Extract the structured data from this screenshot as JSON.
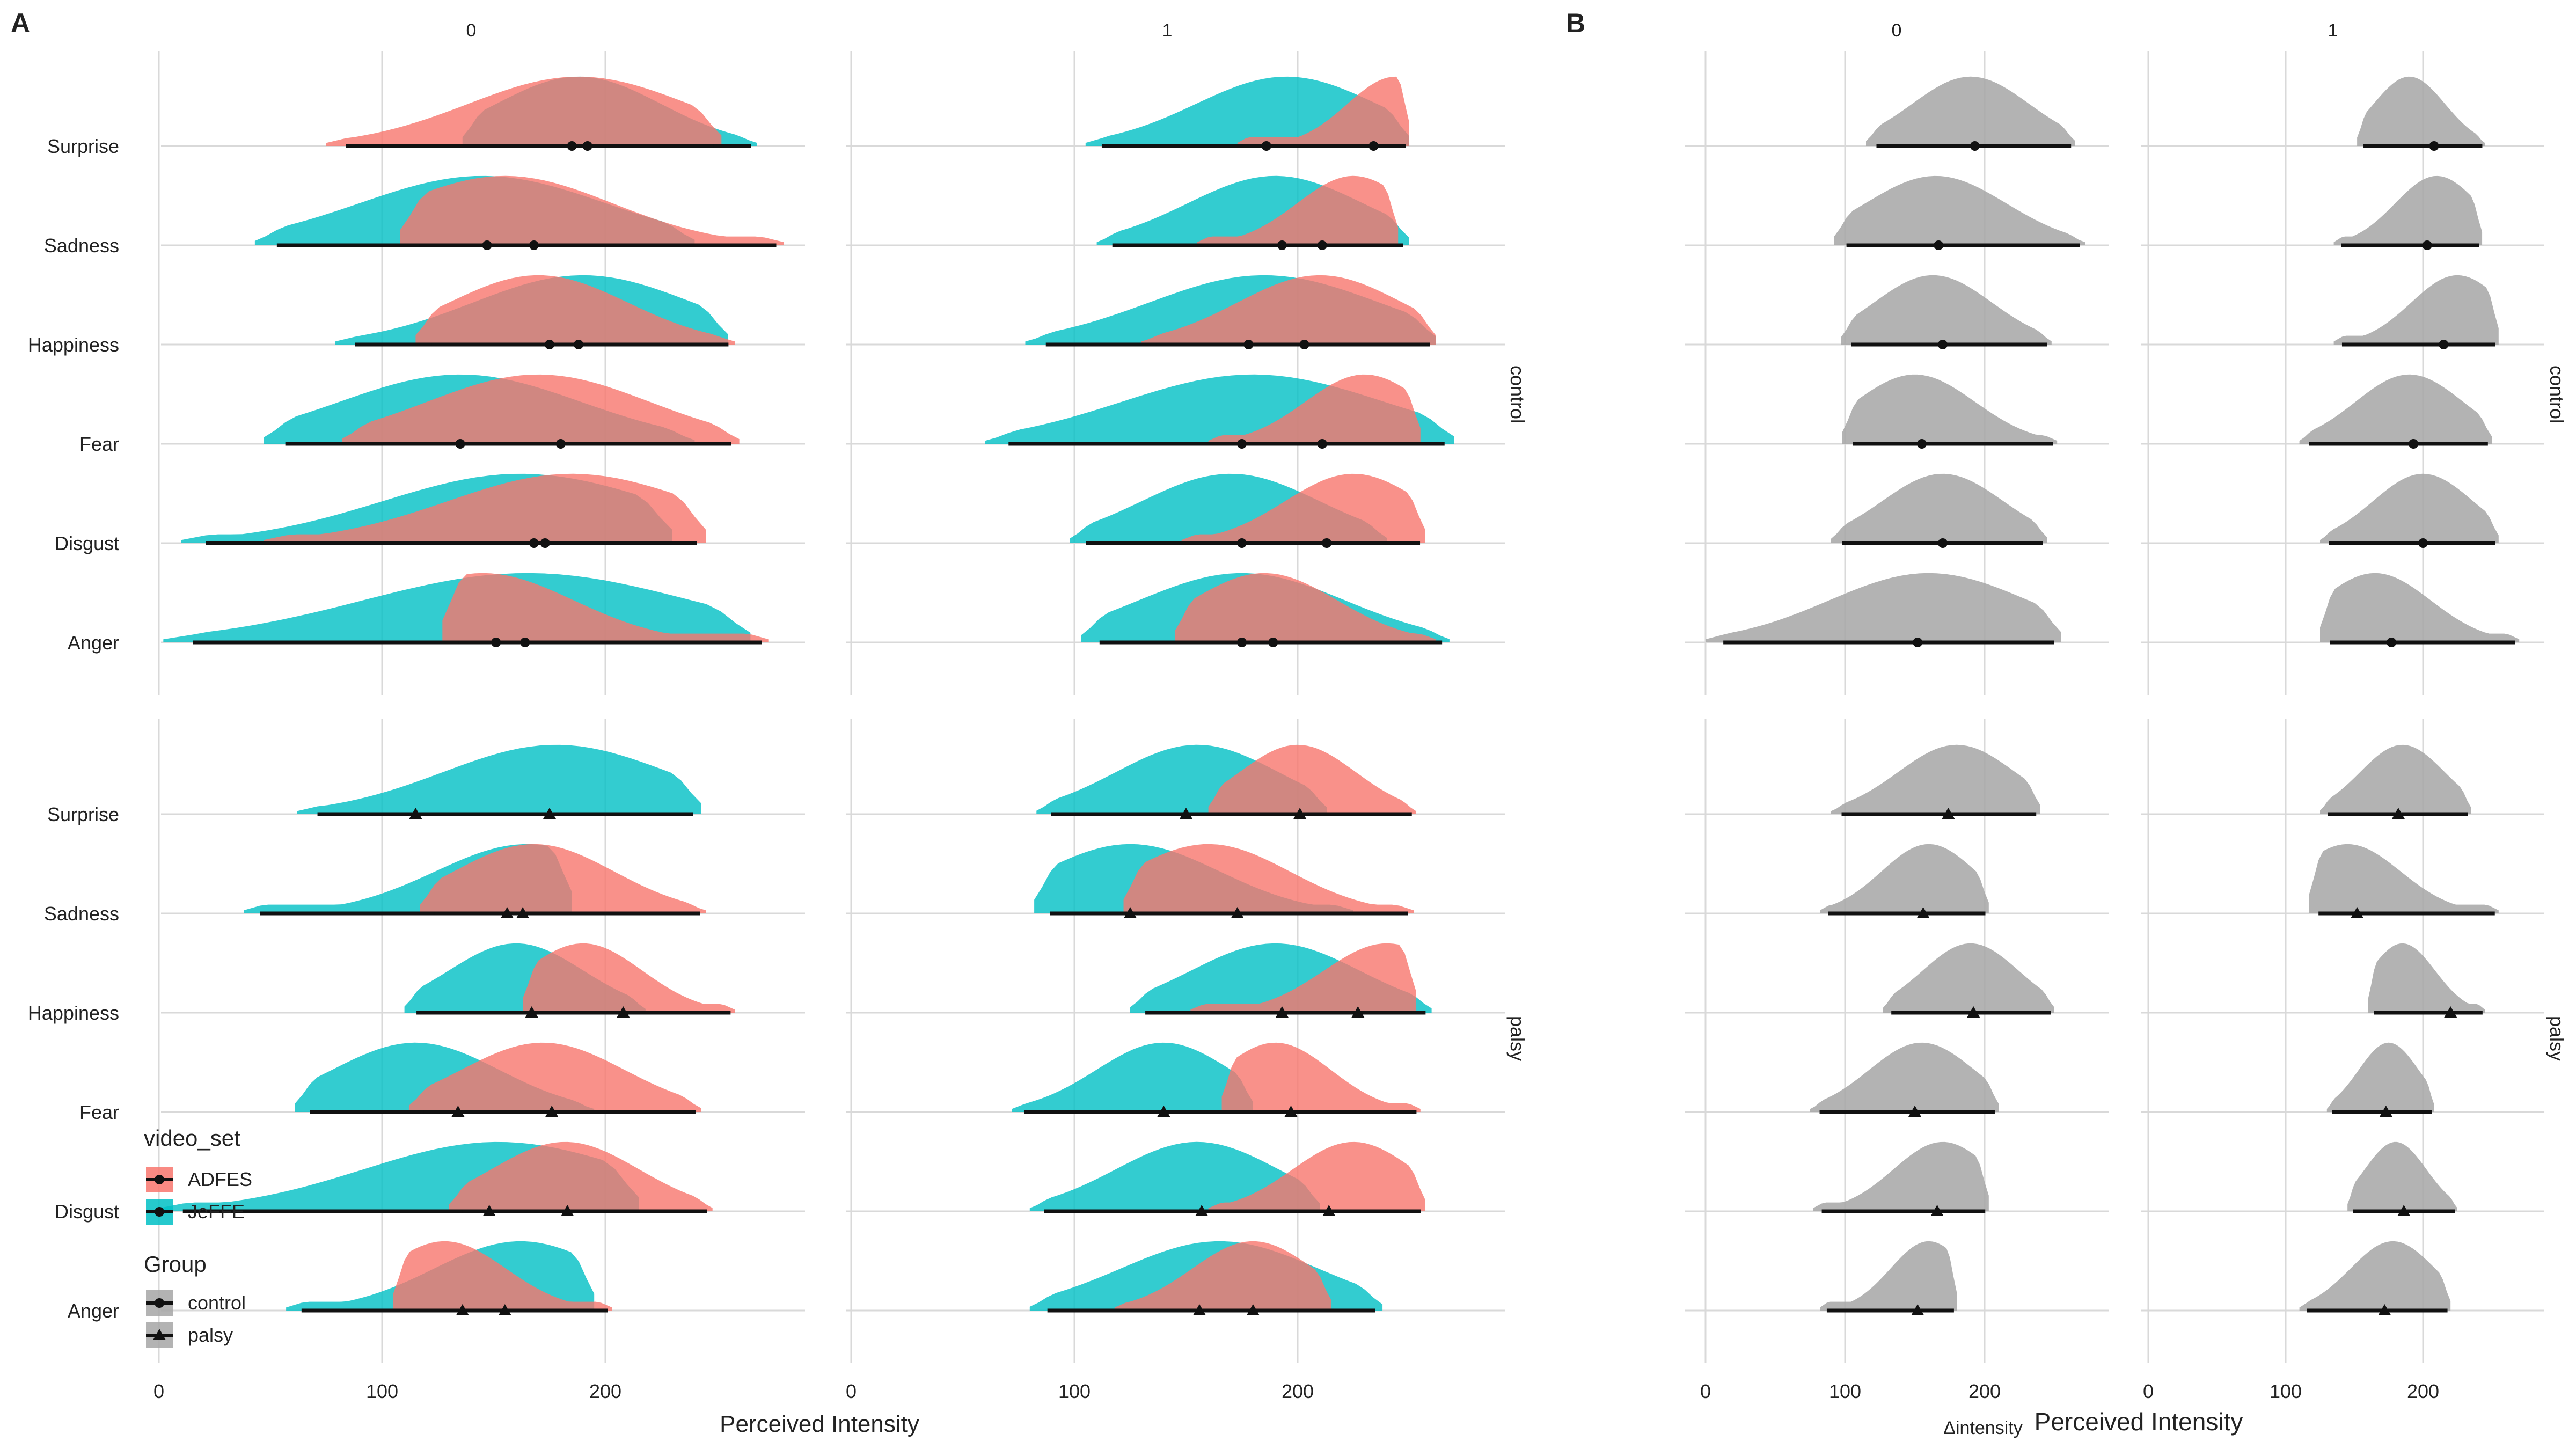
{
  "panel_labels": [
    "A",
    "B"
  ],
  "facet_columns": [
    "0",
    "1"
  ],
  "facet_rows": [
    "control",
    "palsy"
  ],
  "emotions": [
    "Surprise",
    "Sadness",
    "Happiness",
    "Fear",
    "Disgust",
    "Anger"
  ],
  "xlabel_A": "Perceived Intensity",
  "xlabel_B_sub": "Δintensity",
  "xlabel_B": "Perceived  Intensity",
  "legend": {
    "video_title": "video_set",
    "video_items": [
      "ADFES",
      "JeFFE"
    ],
    "group_title": "Group",
    "group_items": [
      "control",
      "palsy"
    ]
  },
  "colors": {
    "ADFES": "#f8766d",
    "JeFFE": "#00bfc4",
    "delta": "#a6a6a6"
  },
  "chart_data": [
    {
      "type": "ridgeline",
      "panel": "A",
      "xlabel": "Perceived Intensity",
      "xticks": [
        0,
        100,
        200
      ],
      "xlim": [
        -10,
        270
      ],
      "series": [
        {
          "row": "control",
          "col": "0",
          "emotion": "Surprise",
          "ADFES": {
            "min": 75,
            "max": 252,
            "mean": 185,
            "median": 188
          },
          "JeFFE": {
            "min": 136,
            "max": 268,
            "mean": 192,
            "median": 188
          }
        },
        {
          "row": "control",
          "col": "0",
          "emotion": "Sadness",
          "ADFES": {
            "min": 108,
            "max": 280,
            "mean": 168,
            "median": 155
          },
          "JeFFE": {
            "min": 43,
            "max": 240,
            "mean": 147,
            "median": 145
          }
        },
        {
          "row": "control",
          "col": "0",
          "emotion": "Happiness",
          "ADFES": {
            "min": 115,
            "max": 258,
            "mean": 175,
            "median": 170
          },
          "JeFFE": {
            "min": 79,
            "max": 255,
            "mean": 188,
            "median": 190
          }
        },
        {
          "row": "control",
          "col": "0",
          "emotion": "Fear",
          "ADFES": {
            "min": 82,
            "max": 260,
            "mean": 180,
            "median": 170
          },
          "JeFFE": {
            "min": 47,
            "max": 240,
            "mean": 135,
            "median": 135
          }
        },
        {
          "row": "control",
          "col": "0",
          "emotion": "Disgust",
          "ADFES": {
            "min": 47,
            "max": 245,
            "mean": 173,
            "median": 185
          },
          "JeFFE": {
            "min": 10,
            "max": 230,
            "mean": 168,
            "median": 162
          }
        },
        {
          "row": "control",
          "col": "0",
          "emotion": "Anger",
          "ADFES": {
            "min": 127,
            "max": 273,
            "mean": 164,
            "median": 145
          },
          "JeFFE": {
            "min": 2,
            "max": 265,
            "mean": 151,
            "median": 165
          }
        },
        {
          "row": "control",
          "col": "1",
          "emotion": "Surprise",
          "ADFES": {
            "min": 173,
            "max": 250,
            "mean": 234,
            "median": 245
          },
          "JeFFE": {
            "min": 105,
            "max": 250,
            "mean": 186,
            "median": 195
          }
        },
        {
          "row": "control",
          "col": "1",
          "emotion": "Sadness",
          "ADFES": {
            "min": 155,
            "max": 245,
            "mean": 211,
            "median": 225
          },
          "JeFFE": {
            "min": 110,
            "max": 250,
            "mean": 193,
            "median": 190
          }
        },
        {
          "row": "control",
          "col": "1",
          "emotion": "Happiness",
          "ADFES": {
            "min": 130,
            "max": 262,
            "mean": 203,
            "median": 210
          },
          "JeFFE": {
            "min": 78,
            "max": 262,
            "mean": 178,
            "median": 185
          }
        },
        {
          "row": "control",
          "col": "1",
          "emotion": "Fear",
          "ADFES": {
            "min": 160,
            "max": 255,
            "mean": 211,
            "median": 230
          },
          "JeFFE": {
            "min": 60,
            "max": 270,
            "mean": 175,
            "median": 180
          }
        },
        {
          "row": "control",
          "col": "1",
          "emotion": "Disgust",
          "ADFES": {
            "min": 148,
            "max": 257,
            "mean": 213,
            "median": 225
          },
          "JeFFE": {
            "min": 98,
            "max": 240,
            "mean": 175,
            "median": 170
          }
        },
        {
          "row": "control",
          "col": "1",
          "emotion": "Anger",
          "ADFES": {
            "min": 145,
            "max": 262,
            "mean": 189,
            "median": 185
          },
          "JeFFE": {
            "min": 103,
            "max": 268,
            "mean": 175,
            "median": 175
          }
        },
        {
          "row": "palsy",
          "col": "0",
          "emotion": "Surprise",
          "JeFFE": {
            "min": 62,
            "max": 243,
            "mean": 175,
            "median": 178
          },
          "JeFFE_mean2": 115
        },
        {
          "row": "palsy",
          "col": "0",
          "emotion": "Sadness",
          "ADFES": {
            "min": 117,
            "max": 245,
            "mean": 163,
            "median": 168
          },
          "JeFFE": {
            "min": 38,
            "max": 185,
            "mean": 156,
            "median": 165
          }
        },
        {
          "row": "palsy",
          "col": "0",
          "emotion": "Happiness",
          "ADFES": {
            "min": 163,
            "max": 258,
            "mean": 208,
            "median": 190
          },
          "JeFFE": {
            "min": 110,
            "max": 218,
            "mean": 167,
            "median": 160
          }
        },
        {
          "row": "palsy",
          "col": "0",
          "emotion": "Fear",
          "ADFES": {
            "min": 112,
            "max": 243,
            "mean": 176,
            "median": 172
          },
          "JeFFE": {
            "min": 61,
            "max": 195,
            "mean": 134,
            "median": 115
          }
        },
        {
          "row": "palsy",
          "col": "0",
          "emotion": "Disgust",
          "ADFES": {
            "min": 130,
            "max": 248,
            "mean": 183,
            "median": 182
          },
          "JeFFE": {
            "min": 0,
            "max": 215,
            "mean": 148,
            "median": 152
          }
        },
        {
          "row": "palsy",
          "col": "0",
          "emotion": "Anger",
          "ADFES": {
            "min": 105,
            "max": 203,
            "mean": 155,
            "median": 128
          },
          "JeFFE": {
            "min": 57,
            "max": 195,
            "mean": 136,
            "median": 162
          }
        },
        {
          "row": "palsy",
          "col": "1",
          "emotion": "Surprise",
          "ADFES": {
            "min": 160,
            "max": 253,
            "mean": 201,
            "median": 200
          },
          "JeFFE": {
            "min": 83,
            "max": 213,
            "mean": 150,
            "median": 155
          }
        },
        {
          "row": "palsy",
          "col": "1",
          "emotion": "Sadness",
          "ADFES": {
            "min": 122,
            "max": 252,
            "mean": 173,
            "median": 160
          },
          "JeFFE": {
            "min": 82,
            "max": 225,
            "mean": 125,
            "median": 125
          }
        },
        {
          "row": "palsy",
          "col": "1",
          "emotion": "Happiness",
          "ADFES": {
            "min": 152,
            "max": 253,
            "mean": 227,
            "median": 240
          },
          "JeFFE": {
            "min": 125,
            "max": 260,
            "mean": 193,
            "median": 190
          }
        },
        {
          "row": "palsy",
          "col": "1",
          "emotion": "Fear",
          "ADFES": {
            "min": 166,
            "max": 255,
            "mean": 197,
            "median": 190
          },
          "JeFFE": {
            "min": 72,
            "max": 180,
            "mean": 140,
            "median": 140
          }
        },
        {
          "row": "palsy",
          "col": "1",
          "emotion": "Disgust",
          "ADFES": {
            "min": 160,
            "max": 257,
            "mean": 214,
            "median": 225
          },
          "JeFFE": {
            "min": 80,
            "max": 210,
            "mean": 157,
            "median": 155
          }
        },
        {
          "row": "palsy",
          "col": "1",
          "emotion": "Anger",
          "ADFES": {
            "min": 118,
            "max": 215,
            "mean": 180,
            "median": 180
          },
          "JeFFE": {
            "min": 80,
            "max": 238,
            "mean": 156,
            "median": 165
          }
        }
      ]
    },
    {
      "type": "ridgeline",
      "panel": "B",
      "xlabel": "Δintensity Perceived Intensity",
      "xticks": [
        0,
        100,
        200
      ],
      "xlim": [
        -10,
        270
      ],
      "series": [
        {
          "row": "control",
          "col": "0",
          "emotion": "Surprise",
          "min": 115,
          "max": 265,
          "mean": 193,
          "median": 190
        },
        {
          "row": "control",
          "col": "0",
          "emotion": "Sadness",
          "min": 92,
          "max": 272,
          "mean": 167,
          "median": 165
        },
        {
          "row": "control",
          "col": "0",
          "emotion": "Happiness",
          "min": 97,
          "max": 248,
          "mean": 170,
          "median": 163
        },
        {
          "row": "control",
          "col": "0",
          "emotion": "Fear",
          "min": 98,
          "max": 252,
          "mean": 155,
          "median": 150
        },
        {
          "row": "control",
          "col": "0",
          "emotion": "Disgust",
          "min": 90,
          "max": 245,
          "mean": 170,
          "median": 170
        },
        {
          "row": "control",
          "col": "0",
          "emotion": "Anger",
          "min": 0,
          "max": 255,
          "mean": 152,
          "median": 160
        },
        {
          "row": "control",
          "col": "1",
          "emotion": "Surprise",
          "min": 152,
          "max": 245,
          "mean": 208,
          "median": 190
        },
        {
          "row": "control",
          "col": "1",
          "emotion": "Sadness",
          "min": 135,
          "max": 243,
          "mean": 203,
          "median": 210
        },
        {
          "row": "control",
          "col": "1",
          "emotion": "Happiness",
          "min": 135,
          "max": 255,
          "mean": 215,
          "median": 225
        },
        {
          "row": "control",
          "col": "1",
          "emotion": "Fear",
          "min": 110,
          "max": 250,
          "mean": 193,
          "median": 190
        },
        {
          "row": "control",
          "col": "1",
          "emotion": "Disgust",
          "min": 125,
          "max": 255,
          "mean": 200,
          "median": 200
        },
        {
          "row": "control",
          "col": "1",
          "emotion": "Anger",
          "min": 125,
          "max": 270,
          "mean": 177,
          "median": 165
        },
        {
          "row": "palsy",
          "col": "0",
          "emotion": "Surprise",
          "min": 90,
          "max": 240,
          "mean": 174,
          "median": 180
        },
        {
          "row": "palsy",
          "col": "0",
          "emotion": "Sadness",
          "min": 82,
          "max": 203,
          "mean": 156,
          "median": 160
        },
        {
          "row": "palsy",
          "col": "0",
          "emotion": "Happiness",
          "min": 127,
          "max": 250,
          "mean": 192,
          "median": 190
        },
        {
          "row": "palsy",
          "col": "0",
          "emotion": "Fear",
          "min": 75,
          "max": 210,
          "mean": 150,
          "median": 155
        },
        {
          "row": "palsy",
          "col": "0",
          "emotion": "Disgust",
          "min": 77,
          "max": 203,
          "mean": 166,
          "median": 170
        },
        {
          "row": "palsy",
          "col": "0",
          "emotion": "Anger",
          "min": 82,
          "max": 180,
          "mean": 152,
          "median": 160
        },
        {
          "row": "palsy",
          "col": "1",
          "emotion": "Surprise",
          "min": 125,
          "max": 235,
          "mean": 182,
          "median": 185
        },
        {
          "row": "palsy",
          "col": "1",
          "emotion": "Sadness",
          "min": 117,
          "max": 255,
          "mean": 152,
          "median": 145
        },
        {
          "row": "palsy",
          "col": "1",
          "emotion": "Happiness",
          "min": 160,
          "max": 245,
          "mean": 220,
          "median": 185
        },
        {
          "row": "palsy",
          "col": "1",
          "emotion": "Fear",
          "min": 130,
          "max": 208,
          "mean": 173,
          "median": 175
        },
        {
          "row": "palsy",
          "col": "1",
          "emotion": "Disgust",
          "min": 145,
          "max": 225,
          "mean": 186,
          "median": 180
        },
        {
          "row": "palsy",
          "col": "1",
          "emotion": "Anger",
          "min": 110,
          "max": 220,
          "mean": 172,
          "median": 178
        }
      ]
    }
  ]
}
